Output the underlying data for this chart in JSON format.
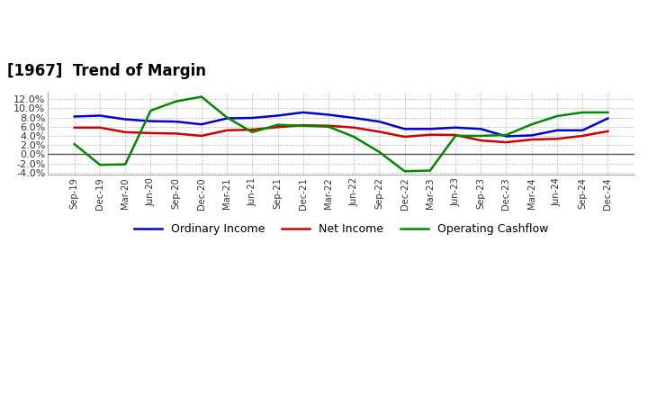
{
  "title": "[1967]  Trend of Margin",
  "x_labels": [
    "Sep-19",
    "Dec-19",
    "Mar-20",
    "Jun-20",
    "Sep-20",
    "Dec-20",
    "Mar-21",
    "Jun-21",
    "Sep-21",
    "Dec-21",
    "Mar-22",
    "Jun-22",
    "Sep-22",
    "Dec-22",
    "Mar-23",
    "Jun-23",
    "Sep-23",
    "Dec-23",
    "Mar-24",
    "Jun-24",
    "Sep-24",
    "Dec-24"
  ],
  "ordinary_income": [
    8.2,
    8.4,
    7.6,
    7.2,
    7.1,
    6.5,
    7.8,
    7.9,
    8.4,
    9.1,
    8.6,
    7.9,
    7.1,
    5.5,
    5.5,
    5.8,
    5.5,
    3.9,
    4.1,
    5.2,
    5.2,
    7.8
  ],
  "net_income": [
    5.8,
    5.8,
    4.8,
    4.6,
    4.5,
    4.0,
    5.2,
    5.35,
    5.9,
    6.3,
    6.2,
    5.8,
    4.9,
    3.8,
    4.25,
    4.2,
    3.0,
    2.6,
    3.2,
    3.35,
    4.0,
    5.0
  ],
  "operating_cashflow": [
    2.2,
    -2.3,
    -2.2,
    9.5,
    11.5,
    12.5,
    8.0,
    4.8,
    6.4,
    6.2,
    6.0,
    3.8,
    0.5,
    -3.7,
    -3.55,
    4.0,
    4.0,
    4.2,
    6.5,
    8.3,
    9.1,
    9.1
  ],
  "ylim": [
    -4.5,
    13.5
  ],
  "yticks": [
    -4.0,
    -2.0,
    0.0,
    2.0,
    4.0,
    6.0,
    8.0,
    10.0,
    12.0
  ],
  "line_colors": {
    "ordinary_income": "#0000cc",
    "net_income": "#cc0000",
    "operating_cashflow": "#008800"
  },
  "legend_labels": [
    "Ordinary Income",
    "Net Income",
    "Operating Cashflow"
  ],
  "bg_color": "#ffffff",
  "plot_bg_color": "#ffffff"
}
